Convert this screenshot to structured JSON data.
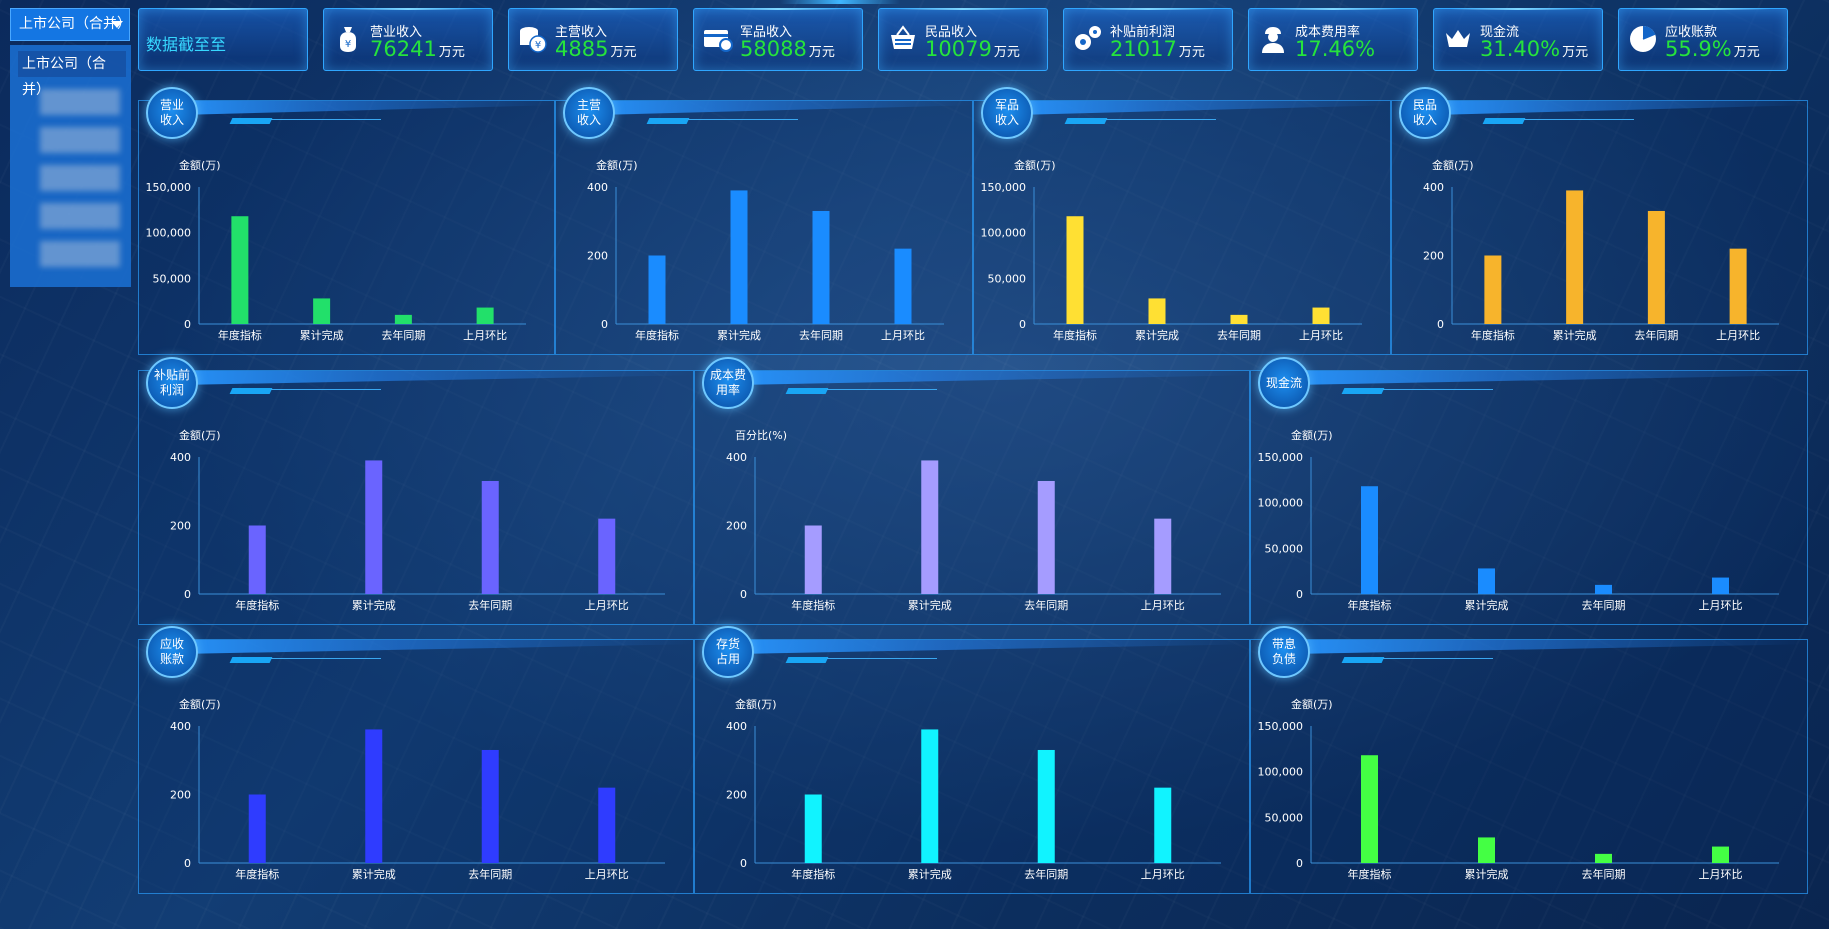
{
  "company": {
    "selected": "上市公司（合并）",
    "options": [
      "上市公司（合并）",
      "",
      "",
      "",
      "",
      ""
    ]
  },
  "date": {
    "label": "数据截至至"
  },
  "kpis": [
    {
      "id": "revenue",
      "label": "营业收入",
      "value": "76241",
      "unit": "万元",
      "icon": "money-bag-icon"
    },
    {
      "id": "main",
      "label": "主营收入",
      "value": "4885",
      "unit": "万元",
      "icon": "coins-icon"
    },
    {
      "id": "military",
      "label": "军品收入",
      "value": "58088",
      "unit": "万元",
      "icon": "card-icon"
    },
    {
      "id": "civil",
      "label": "民品收入",
      "value": "10079",
      "unit": "万元",
      "icon": "basket-icon"
    },
    {
      "id": "profit",
      "label": "补贴前利润",
      "value": "21017",
      "unit": "万元",
      "icon": "gears-icon"
    },
    {
      "id": "cost",
      "label": "成本费用率",
      "value": "17.46%",
      "unit": "",
      "icon": "worker-icon"
    },
    {
      "id": "cash",
      "label": "现金流",
      "value": "31.40%",
      "unit": "万元",
      "icon": "crown-icon"
    },
    {
      "id": "receivable",
      "label": "应收账款",
      "value": "55.9%",
      "unit": "万元",
      "icon": "pie-icon"
    }
  ],
  "chart_data": [
    {
      "type": "bar",
      "badge": "营业\n收入",
      "ylabel": "金额(万)",
      "categories": [
        "年度指标",
        "累计完成",
        "去年同期",
        "上月环比"
      ],
      "values": [
        118000,
        28000,
        10000,
        18000
      ],
      "ylim": [
        0,
        150000
      ],
      "yticks": [
        0,
        50000,
        100000,
        150000
      ],
      "color": "#22e06a"
    },
    {
      "type": "bar",
      "badge": "主营\n收入",
      "ylabel": "金额(万)",
      "categories": [
        "年度指标",
        "累计完成",
        "去年同期",
        "上月环比"
      ],
      "values": [
        200,
        390,
        330,
        220
      ],
      "ylim": [
        0,
        400
      ],
      "yticks": [
        0,
        200,
        400
      ],
      "color": "#1a8cff"
    },
    {
      "type": "bar",
      "badge": "军品\n收入",
      "ylabel": "金额(万)",
      "categories": [
        "年度指标",
        "累计完成",
        "去年同期",
        "上月环比"
      ],
      "values": [
        118000,
        28000,
        10000,
        18000
      ],
      "ylim": [
        0,
        150000
      ],
      "yticks": [
        0,
        50000,
        100000,
        150000
      ],
      "color": "#ffe033"
    },
    {
      "type": "bar",
      "badge": "民品\n收入",
      "ylabel": "金额(万)",
      "categories": [
        "年度指标",
        "累计完成",
        "去年同期",
        "上月环比"
      ],
      "values": [
        200,
        390,
        330,
        220
      ],
      "ylim": [
        0,
        400
      ],
      "yticks": [
        0,
        200,
        400
      ],
      "color": "#f7b42c"
    },
    {
      "type": "bar",
      "badge": "补贴前\n利润",
      "ylabel": "金额(万)",
      "categories": [
        "年度指标",
        "累计完成",
        "去年同期",
        "上月环比"
      ],
      "values": [
        200,
        390,
        330,
        220
      ],
      "ylim": [
        0,
        400
      ],
      "yticks": [
        0,
        200,
        400
      ],
      "color": "#6a64ff"
    },
    {
      "type": "bar",
      "badge": "成本费\n用率",
      "ylabel": "百分比(%)",
      "categories": [
        "年度指标",
        "累计完成",
        "去年同期",
        "上月环比"
      ],
      "values": [
        200,
        390,
        330,
        220
      ],
      "ylim": [
        0,
        400
      ],
      "yticks": [
        0,
        200,
        400
      ],
      "color": "#a59cff"
    },
    {
      "type": "bar",
      "badge": "现金流",
      "ylabel": "金额(万)",
      "categories": [
        "年度指标",
        "累计完成",
        "去年同期",
        "上月环比"
      ],
      "values": [
        118000,
        28000,
        10000,
        18000
      ],
      "ylim": [
        0,
        150000
      ],
      "yticks": [
        0,
        50000,
        100000,
        150000
      ],
      "color": "#1a8cff"
    },
    {
      "type": "bar",
      "badge": "应收\n账款",
      "ylabel": "金额(万)",
      "categories": [
        "年度指标",
        "累计完成",
        "去年同期",
        "上月环比"
      ],
      "values": [
        200,
        390,
        330,
        220
      ],
      "ylim": [
        0,
        400
      ],
      "yticks": [
        0,
        200,
        400
      ],
      "color": "#2f3cff"
    },
    {
      "type": "bar",
      "badge": "存货\n占用",
      "ylabel": "金额(万)",
      "categories": [
        "年度指标",
        "累计完成",
        "去年同期",
        "上月环比"
      ],
      "values": [
        200,
        390,
        330,
        220
      ],
      "ylim": [
        0,
        400
      ],
      "yticks": [
        0,
        200,
        400
      ],
      "color": "#11f3ff"
    },
    {
      "type": "bar",
      "badge": "带息\n负债",
      "ylabel": "金额(万)",
      "categories": [
        "年度指标",
        "累计完成",
        "去年同期",
        "上月环比"
      ],
      "values": [
        118000,
        28000,
        10000,
        18000
      ],
      "ylim": [
        0,
        150000
      ],
      "yticks": [
        0,
        50000,
        100000,
        150000
      ],
      "color": "#44ff44"
    }
  ]
}
